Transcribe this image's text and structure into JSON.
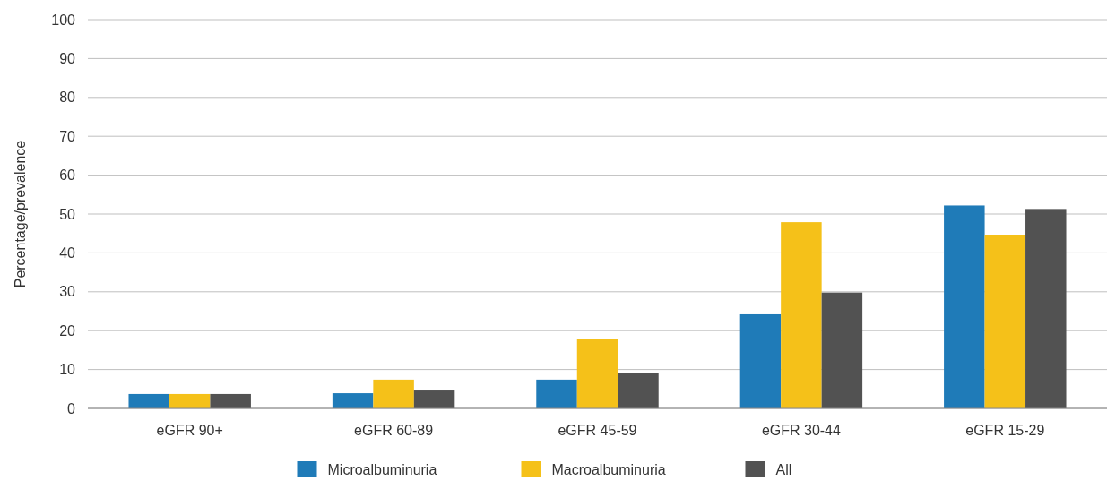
{
  "chart_data": {
    "type": "bar",
    "ylabel": "Percentage/prevalence",
    "categories": [
      "eGFR 90+",
      "eGFR 60-89",
      "eGFR 45-59",
      "eGFR 30-44",
      "eGFR 15-29"
    ],
    "series": [
      {
        "name": "Microalbuminuria",
        "color": "#1f7bb8",
        "values": [
          3.7,
          3.9,
          7.4,
          24.2,
          52.2
        ]
      },
      {
        "name": "Macroalbuminuria",
        "color": "#f5c119",
        "values": [
          3.7,
          7.4,
          17.8,
          47.9,
          44.7
        ]
      },
      {
        "name": "All",
        "color": "#525252",
        "values": [
          3.7,
          4.6,
          9.0,
          29.8,
          51.3
        ]
      }
    ],
    "ylim": [
      0,
      100
    ],
    "yticks": [
      0,
      10,
      20,
      30,
      40,
      50,
      60,
      70,
      80,
      90,
      100
    ],
    "grid": "y",
    "legend": "bottom"
  }
}
